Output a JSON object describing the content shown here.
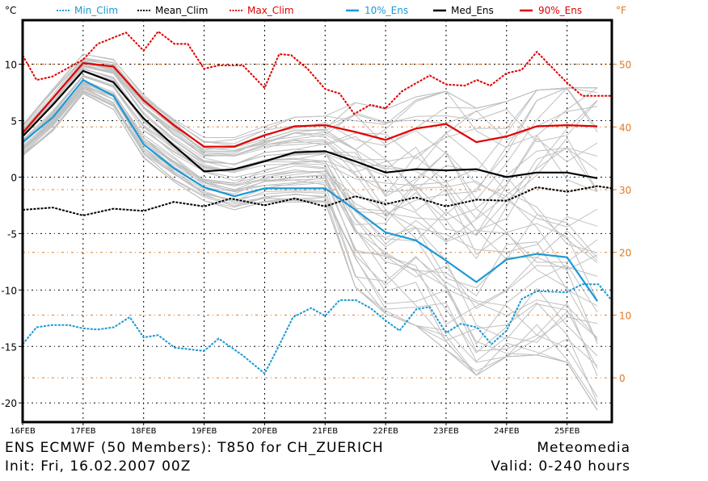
{
  "chart_data": {
    "type": "line",
    "title": "ENS ECMWF (50 Members): T850 for CH_ZUERICH",
    "subtitle": "Init: Fri, 16.02.2007 00Z",
    "source": "Meteomedia",
    "valid": "Valid: 0-240 hours",
    "ylabel_left": "°C",
    "ylabel_right": "°F",
    "ylim": [
      -21.7,
      13.9
    ],
    "xlim_days": [
      16.0,
      25.75
    ],
    "grid": true,
    "legend_position": "top",
    "yticks_c": [
      10,
      5,
      0,
      -5,
      -10,
      -15,
      -20
    ],
    "ytick_labels_c": [
      "10",
      "5",
      "0",
      "-5",
      "-10",
      "-15",
      "-20"
    ],
    "yticks_f": [
      50,
      40,
      30,
      20,
      10,
      0
    ],
    "ytick_labels_f": [
      "50",
      "40",
      "30",
      "20",
      "10",
      "0"
    ],
    "xticks_days": [
      16,
      17,
      18,
      19,
      20,
      21,
      22,
      23,
      24,
      25
    ],
    "xtick_labels": [
      "16FEB",
      "17FEB",
      "18FEB",
      "19FEB",
      "20FEB",
      "21FEB",
      "22FEB",
      "23FEB",
      "24FEB",
      "25FEB"
    ],
    "legend": [
      {
        "name": "Min_Clim",
        "color": "#1a9ad6",
        "style": "dotted"
      },
      {
        "name": "Mean_Clim",
        "color": "#000000",
        "style": "dotted"
      },
      {
        "name": "Max_Clim",
        "color": "#e00000",
        "style": "dotted"
      },
      {
        "name": "10%_Ens",
        "color": "#1a9ad6",
        "style": "solid"
      },
      {
        "name": "Med_Ens",
        "color": "#000000",
        "style": "solid"
      },
      {
        "name": "90%_Ens",
        "color": "#e00000",
        "style": "solid"
      }
    ],
    "ens_x_days": [
      16.0,
      16.5,
      17.0,
      17.5,
      18.0,
      18.5,
      19.0,
      19.5,
      20.0,
      20.5,
      21.0,
      21.5,
      22.0,
      22.5,
      23.0,
      23.5,
      24.0,
      24.5,
      25.0,
      25.5
    ],
    "series": [
      {
        "name": "90%_Ens",
        "values": [
          3.9,
          7.0,
          10.1,
          9.8,
          6.8,
          4.6,
          2.7,
          2.7,
          3.7,
          4.5,
          4.6,
          4.0,
          3.3,
          4.3,
          4.7,
          3.1,
          3.6,
          4.5,
          4.6,
          4.5
        ]
      },
      {
        "name": "Med_Ens",
        "values": [
          3.6,
          6.4,
          9.4,
          8.4,
          5.2,
          2.8,
          0.5,
          0.7,
          1.4,
          2.2,
          2.3,
          1.4,
          0.4,
          0.7,
          0.6,
          0.7,
          0.0,
          0.4,
          0.4,
          -0.1
        ]
      },
      {
        "name": "10%_Ens",
        "values": [
          3.1,
          5.3,
          8.6,
          7.2,
          2.9,
          0.8,
          -0.9,
          -1.7,
          -1.0,
          -1.0,
          -1.0,
          -2.9,
          -4.9,
          -5.6,
          -7.4,
          -9.3,
          -7.3,
          -6.8,
          -7.1,
          -11.0
        ]
      }
    ],
    "clim_series": [
      {
        "name": "Max_Clim",
        "x_days": [
          16.0,
          16.23,
          16.49,
          17.0,
          17.24,
          17.71,
          18.0,
          18.24,
          18.51,
          18.73,
          19.0,
          19.24,
          19.64,
          20.0,
          20.24,
          20.44,
          20.71,
          21.0,
          21.24,
          21.48,
          21.75,
          22.0,
          22.27,
          22.73,
          23.0,
          23.31,
          23.51,
          23.73,
          24.0,
          24.25,
          24.5,
          24.99,
          25.25,
          25.72
        ],
        "values": [
          10.8,
          8.6,
          8.9,
          10.4,
          11.8,
          12.8,
          11.2,
          12.9,
          11.8,
          11.8,
          9.6,
          9.9,
          9.9,
          7.9,
          10.9,
          10.8,
          9.6,
          7.8,
          7.4,
          5.6,
          6.4,
          6.1,
          7.6,
          9.0,
          8.2,
          8.1,
          8.6,
          8.1,
          9.2,
          9.5,
          11.1,
          8.4,
          7.2,
          7.2
        ]
      },
      {
        "name": "Mean_Clim",
        "x_days": [
          16.0,
          16.5,
          17.0,
          17.5,
          18.0,
          18.5,
          19.0,
          19.44,
          20.0,
          20.5,
          21.0,
          21.5,
          22.0,
          22.5,
          23.0,
          23.51,
          24.0,
          24.5,
          25.0,
          25.5,
          25.75
        ],
        "values": [
          -2.9,
          -2.7,
          -3.4,
          -2.8,
          -3.0,
          -2.2,
          -2.6,
          -1.9,
          -2.5,
          -1.9,
          -2.6,
          -1.7,
          -2.4,
          -1.8,
          -2.6,
          -2.0,
          -2.1,
          -0.9,
          -1.3,
          -0.8,
          -1.0
        ]
      },
      {
        "name": "Min_Clim",
        "x_days": [
          16.0,
          16.23,
          16.49,
          16.76,
          17.0,
          17.24,
          17.51,
          17.77,
          18.0,
          18.24,
          18.51,
          19.0,
          19.24,
          19.64,
          20.0,
          20.24,
          20.47,
          20.77,
          21.0,
          21.24,
          21.51,
          21.75,
          22.0,
          22.23,
          22.51,
          22.73,
          23.0,
          23.24,
          23.51,
          23.75,
          24.0,
          24.25,
          24.5,
          24.99,
          25.25,
          25.52,
          25.75
        ],
        "values": [
          -14.8,
          -13.3,
          -13.1,
          -13.1,
          -13.4,
          -13.5,
          -13.3,
          -12.4,
          -14.2,
          -14.0,
          -15.1,
          -15.4,
          -14.3,
          -15.8,
          -17.4,
          -14.9,
          -12.4,
          -11.6,
          -12.3,
          -10.9,
          -10.9,
          -11.6,
          -12.7,
          -13.6,
          -11.7,
          -11.5,
          -13.8,
          -13.0,
          -13.3,
          -14.8,
          -13.6,
          -10.8,
          -10.1,
          -10.2,
          -9.5,
          -9.5,
          -11.0
        ]
      }
    ],
    "ensemble_member_count": 50,
    "colors": {
      "members": "#c0c0c0",
      "grid": "#000000",
      "fahrenheit_grid": "#e07820",
      "fahrenheit_text": "#e07820",
      "frame": "#000000"
    }
  },
  "legend_labels": {
    "unit_c": "°C",
    "unit_f": "°F",
    "min_clim": "Min_Clim",
    "mean_clim": "Mean_Clim",
    "max_clim": "Max_Clim",
    "ens10": "10%_Ens",
    "med": "Med_Ens",
    "ens90": "90%_Ens"
  },
  "footer": {
    "title": "ENS ECMWF (50 Members): T850 for CH_ZUERICH",
    "init": "Init: Fri, 16.02.2007 00Z",
    "source": "Meteomedia",
    "valid": "Valid: 0-240 hours"
  }
}
